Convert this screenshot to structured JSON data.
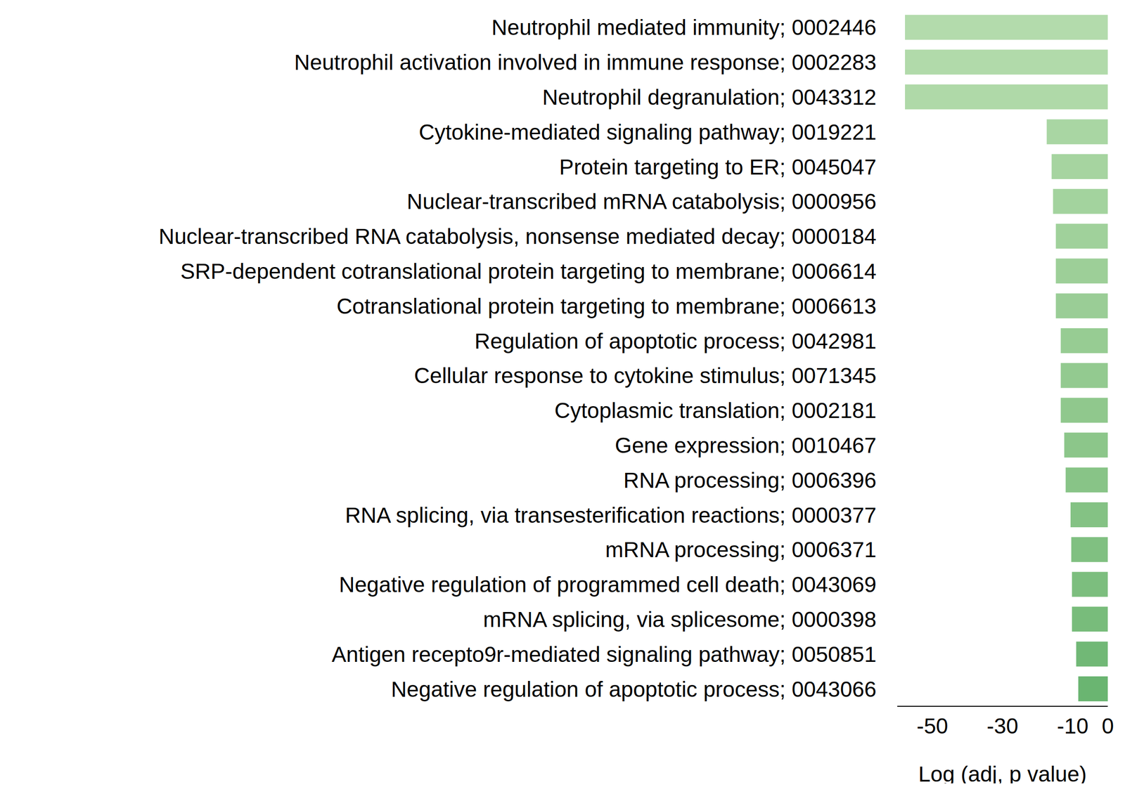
{
  "chart_data": {
    "type": "bar",
    "orientation": "horizontal",
    "x_label": "Log (adj, p value)",
    "categories": [
      "Neutrophil mediated immunity; 0002446",
      "Neutrophil activation involved in immune response; 0002283",
      "Neutrophil degranulation; 0043312",
      "Cytokine-mediated signaling pathway; 0019221",
      "Protein targeting to ER; 0045047",
      "Nuclear-transcribed mRNA catabolysis; 0000956",
      "Nuclear-transcribed RNA catabolysis, nonsense mediated decay; 0000184",
      "SRP-dependent cotranslational protein targeting to membrane; 0006614",
      "Cotranslational protein targeting to membrane; 0006613",
      "Regulation of apoptotic process; 0042981",
      "Cellular response to cytokine stimulus; 0071345",
      "Cytoplasmic translation; 0002181",
      "Gene expression; 0010467",
      "RNA processing; 0006396",
      "RNA splicing, via transesterification reactions; 0000377",
      "mRNA processing; 0006371",
      "Negative regulation of programmed cell death; 0043069",
      "mRNA splicing, via splicesome; 0000398",
      "Antigen recepto9r-mediated signaling pathway; 0050851",
      "Negative regulation of apoptotic process; 0043066"
    ],
    "values": [
      -57.8,
      -57.8,
      -57.8,
      -17.4,
      -16,
      -15.6,
      -14.8,
      -14.8,
      -14.8,
      -13.4,
      -13.4,
      -13.4,
      -12.4,
      -12,
      -10.6,
      -10.4,
      -10.2,
      -10.2,
      -9,
      -8.4
    ],
    "colors": [
      "#b3dbac",
      "#b1daaa",
      "#afd9a8",
      "#a9d6a3",
      "#a6d4a0",
      "#a3d39e",
      "#a0d19b",
      "#9dcf98",
      "#9acd96",
      "#97cc93",
      "#93ca90",
      "#90c88d",
      "#8cc68a",
      "#88c487",
      "#84c284",
      "#80c081",
      "#7cbe7e",
      "#78bc7b",
      "#71b876",
      "#6ab571"
    ],
    "xlim": [
      -60,
      0
    ],
    "xticks": [
      -50,
      -30,
      -10,
      0
    ],
    "grid": false
  }
}
